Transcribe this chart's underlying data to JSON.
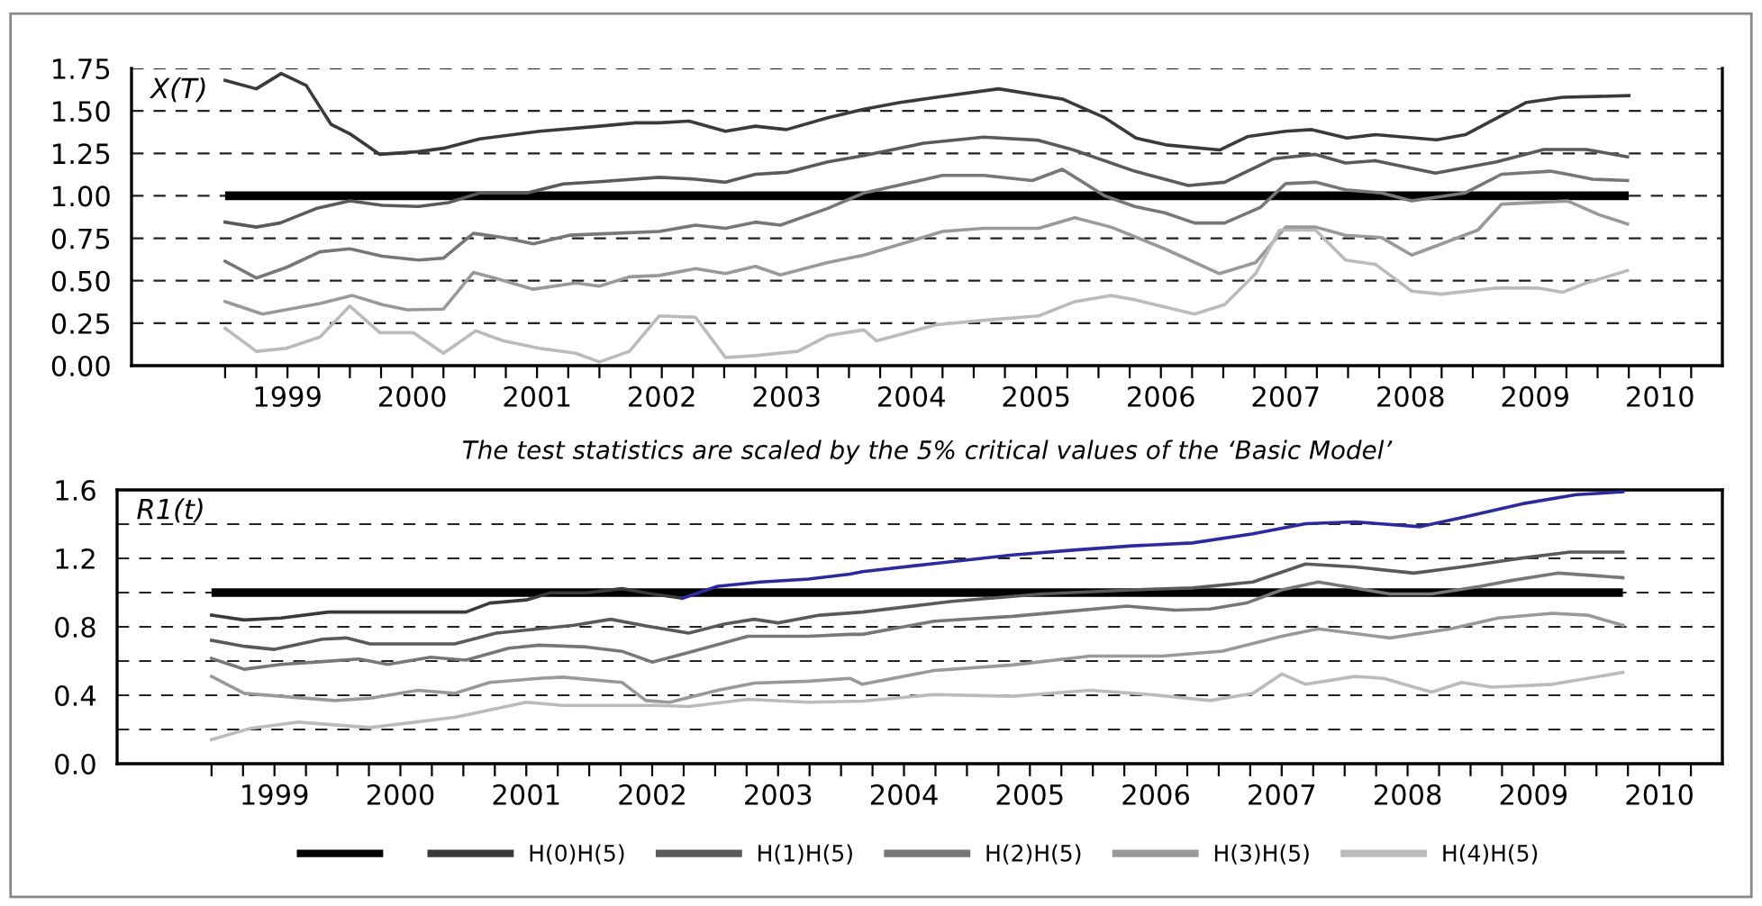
{
  "chart_data": [
    {
      "type": "line",
      "xlim": [
        1998.25,
        2011.0
      ],
      "ylim": [
        0,
        1.75
      ],
      "yticks": [
        {
          "value": 0,
          "label": "0.00"
        },
        {
          "value": 0.25,
          "label": "0.25"
        },
        {
          "value": 0.5,
          "label": "0.50"
        },
        {
          "value": 0.75,
          "label": "0.75"
        },
        {
          "value": 1,
          "label": "1.00"
        },
        {
          "value": 1.25,
          "label": "1.25"
        },
        {
          "value": 1.5,
          "label": "1.50"
        },
        {
          "value": 1.75,
          "label": "1.75"
        }
      ],
      "xticks": [
        {
          "value": 1999,
          "label": null
        },
        {
          "value": 1999.25,
          "label": null
        },
        {
          "value": 1999.5,
          "label": "1999"
        },
        {
          "value": 1999.75,
          "label": null
        },
        {
          "value": 2000,
          "label": null
        },
        {
          "value": 2000.25,
          "label": null
        },
        {
          "value": 2000.5,
          "label": "2000"
        },
        {
          "value": 2000.75,
          "label": null
        },
        {
          "value": 2001,
          "label": null
        },
        {
          "value": 2001.25,
          "label": null
        },
        {
          "value": 2001.5,
          "label": "2001"
        },
        {
          "value": 2001.75,
          "label": null
        },
        {
          "value": 2002,
          "label": null
        },
        {
          "value": 2002.25,
          "label": null
        },
        {
          "value": 2002.5,
          "label": "2002"
        },
        {
          "value": 2002.75,
          "label": null
        },
        {
          "value": 2003,
          "label": null
        },
        {
          "value": 2003.25,
          "label": null
        },
        {
          "value": 2003.5,
          "label": "2003"
        },
        {
          "value": 2003.75,
          "label": null
        },
        {
          "value": 2004,
          "label": null
        },
        {
          "value": 2004.25,
          "label": null
        },
        {
          "value": 2004.5,
          "label": "2004"
        },
        {
          "value": 2004.75,
          "label": null
        },
        {
          "value": 2005,
          "label": null
        },
        {
          "value": 2005.25,
          "label": null
        },
        {
          "value": 2005.5,
          "label": "2005"
        },
        {
          "value": 2005.75,
          "label": null
        },
        {
          "value": 2006,
          "label": null
        },
        {
          "value": 2006.25,
          "label": null
        },
        {
          "value": 2006.5,
          "label": "2006"
        },
        {
          "value": 2006.75,
          "label": null
        },
        {
          "value": 2007,
          "label": null
        },
        {
          "value": 2007.25,
          "label": null
        },
        {
          "value": 2007.5,
          "label": "2007"
        },
        {
          "value": 2007.75,
          "label": null
        },
        {
          "value": 2008,
          "label": null
        },
        {
          "value": 2008.25,
          "label": null
        },
        {
          "value": 2008.5,
          "label": "2008"
        },
        {
          "value": 2008.75,
          "label": null
        },
        {
          "value": 2009,
          "label": null
        },
        {
          "value": 2009.25,
          "label": null
        },
        {
          "value": 2009.5,
          "label": "2009"
        },
        {
          "value": 2009.75,
          "label": null
        },
        {
          "value": 2010,
          "label": null
        },
        {
          "value": 2010.25,
          "label": null
        },
        {
          "value": 2010.5,
          "label": "2010"
        },
        {
          "value": 2010.75,
          "label": null
        }
      ],
      "grid": "y",
      "annotations": [
        "X(T)",
        "The test statistics are scaled by the 5% critical values of the ‘Basic Model’"
      ],
      "ref_lines": [
        {
          "axis": "y",
          "value": 1,
          "color": "#000000"
        }
      ],
      "series": [
        {
          "color": "#3a3a3a",
          "x": [
            1999.0,
            1999.25,
            1999.45,
            1999.65,
            1999.85,
            2000.0,
            2000.24,
            2000.55,
            2000.75,
            2001.04,
            2001.52,
            2002.0,
            2002.29,
            2002.48,
            2002.72,
            2003.01,
            2003.25,
            2003.5,
            2003.83,
            2004.12,
            2004.41,
            2004.7,
            2005.2,
            2005.71,
            2006.05,
            2006.3,
            2006.54,
            2006.97,
            2007.2,
            2007.5,
            2007.71,
            2007.99,
            2008.22,
            2008.71,
            2008.94,
            2009.43,
            2009.72,
            2010.25
          ],
          "values": [
            1.68,
            1.63,
            1.72,
            1.65,
            1.42,
            1.365,
            1.244,
            1.26,
            1.28,
            1.335,
            1.38,
            1.41,
            1.43,
            1.43,
            1.44,
            1.38,
            1.41,
            1.39,
            1.46,
            1.51,
            1.55,
            1.58,
            1.63,
            1.57,
            1.46,
            1.34,
            1.3,
            1.27,
            1.35,
            1.38,
            1.39,
            1.34,
            1.36,
            1.33,
            1.36,
            1.55,
            1.58,
            1.59
          ]
        },
        {
          "color": "#5a5a5a",
          "x": [
            1999.0,
            1999.25,
            1999.44,
            1999.73,
            2000.0,
            2000.26,
            2000.55,
            2000.79,
            2001.04,
            2001.42,
            2001.71,
            2002.0,
            2002.48,
            2002.77,
            2003.01,
            2003.25,
            2003.5,
            2003.83,
            2004.12,
            2004.6,
            2005.08,
            2005.51,
            2005.8,
            2006.29,
            2006.72,
            2007.01,
            2007.4,
            2007.74,
            2007.98,
            2008.22,
            2008.7,
            2009.19,
            2009.57,
            2009.91,
            2010.24
          ],
          "values": [
            0.845,
            0.816,
            0.84,
            0.925,
            0.97,
            0.944,
            0.937,
            0.96,
            1.017,
            1.017,
            1.07,
            1.083,
            1.109,
            1.098,
            1.08,
            1.127,
            1.138,
            1.2,
            1.237,
            1.31,
            1.346,
            1.328,
            1.27,
            1.145,
            1.061,
            1.08,
            1.218,
            1.244,
            1.193,
            1.207,
            1.134,
            1.2,
            1.273,
            1.273,
            1.229
          ]
        },
        {
          "color": "#777777",
          "x": [
            1999.0,
            1999.25,
            1999.49,
            1999.76,
            2000.0,
            2000.26,
            2000.55,
            2000.75,
            2000.99,
            2001.23,
            2001.47,
            2001.76,
            2002.24,
            2002.48,
            2002.77,
            2003.01,
            2003.25,
            2003.45,
            2003.83,
            2004.12,
            2004.75,
            2005.08,
            2005.47,
            2005.71,
            2006.05,
            2006.29,
            2006.53,
            2006.77,
            2007.01,
            2007.3,
            2007.5,
            2007.74,
            2007.98,
            2008.27,
            2008.51,
            2008.94,
            2009.23,
            2009.62,
            2009.76,
            2009.96,
            2010.24
          ],
          "values": [
            0.615,
            0.516,
            0.578,
            0.67,
            0.688,
            0.644,
            0.622,
            0.633,
            0.779,
            0.754,
            0.717,
            0.768,
            0.783,
            0.79,
            0.827,
            0.809,
            0.845,
            0.827,
            0.926,
            1.017,
            1.12,
            1.12,
            1.09,
            1.156,
            1.0,
            0.937,
            0.9,
            0.84,
            0.84,
            0.933,
            1.072,
            1.08,
            1.035,
            1.017,
            0.97,
            1.017,
            1.127,
            1.145,
            1.127,
            1.098,
            1.09
          ]
        },
        {
          "color": "#999999",
          "x": [
            1999.0,
            1999.3,
            1999.76,
            2000.02,
            2000.26,
            2000.46,
            2000.75,
            2000.99,
            2001.18,
            2001.47,
            2001.81,
            2002.0,
            2002.24,
            2002.48,
            2002.77,
            2003.01,
            2003.25,
            2003.45,
            2003.83,
            2004.12,
            2004.75,
            2005.08,
            2005.52,
            2005.81,
            2006.1,
            2006.53,
            2006.97,
            2007.26,
            2007.5,
            2007.74,
            2007.98,
            2008.27,
            2008.51,
            2008.75,
            2009.04,
            2009.23,
            2009.76,
            2010.01,
            2010.24
          ],
          "values": [
            0.377,
            0.304,
            0.366,
            0.413,
            0.359,
            0.329,
            0.333,
            0.549,
            0.512,
            0.45,
            0.487,
            0.468,
            0.523,
            0.531,
            0.571,
            0.542,
            0.585,
            0.534,
            0.607,
            0.651,
            0.79,
            0.809,
            0.809,
            0.871,
            0.816,
            0.688,
            0.542,
            0.607,
            0.816,
            0.816,
            0.768,
            0.754,
            0.651,
            0.717,
            0.798,
            0.951,
            0.97,
            0.889,
            0.834
          ]
        },
        {
          "color": "#bbbbbb",
          "x": [
            1999.0,
            1999.25,
            1999.49,
            1999.76,
            2000.0,
            2000.24,
            2000.51,
            2000.75,
            2001.01,
            2001.23,
            2001.52,
            2001.81,
            2002.0,
            2002.24,
            2002.48,
            2002.77,
            2003.01,
            2003.25,
            2003.59,
            2003.83,
            2004.03,
            2004.12,
            2004.22,
            2004.7,
            2005.08,
            2005.52,
            2005.81,
            2006.1,
            2006.29,
            2006.77,
            2007.01,
            2007.26,
            2007.45,
            2007.74,
            2007.98,
            2008.22,
            2008.51,
            2008.75,
            2009.19,
            2009.52,
            2009.72,
            2009.91,
            2010.24
          ],
          "values": [
            0.22,
            0.084,
            0.102,
            0.168,
            0.351,
            0.194,
            0.194,
            0.073,
            0.205,
            0.146,
            0.102,
            0.073,
            0.022,
            0.084,
            0.293,
            0.285,
            0.048,
            0.059,
            0.084,
            0.176,
            0.201,
            0.21,
            0.146,
            0.241,
            0.267,
            0.293,
            0.377,
            0.413,
            0.388,
            0.304,
            0.359,
            0.542,
            0.798,
            0.798,
            0.622,
            0.596,
            0.439,
            0.421,
            0.457,
            0.457,
            0.432,
            0.487,
            0.56
          ]
        }
      ]
    },
    {
      "type": "line",
      "xlim": [
        1998.25,
        2011.0
      ],
      "ylim": [
        0,
        1.6
      ],
      "yticks": [
        {
          "value": 0,
          "label": "0.0"
        },
        {
          "value": 0.2,
          "label": null
        },
        {
          "value": 0.4,
          "label": "0.4"
        },
        {
          "value": 0.6,
          "label": null
        },
        {
          "value": 0.8,
          "label": "0.8"
        },
        {
          "value": 1.0,
          "label": null
        },
        {
          "value": 1.2,
          "label": "1.2"
        },
        {
          "value": 1.4,
          "label": null
        },
        {
          "value": 1.6,
          "label": "1.6"
        }
      ],
      "xticks": [
        {
          "value": 1999,
          "label": null
        },
        {
          "value": 1999.25,
          "label": null
        },
        {
          "value": 1999.5,
          "label": "1999"
        },
        {
          "value": 1999.75,
          "label": null
        },
        {
          "value": 2000,
          "label": null
        },
        {
          "value": 2000.25,
          "label": null
        },
        {
          "value": 2000.5,
          "label": "2000"
        },
        {
          "value": 2000.75,
          "label": null
        },
        {
          "value": 2001,
          "label": null
        },
        {
          "value": 2001.25,
          "label": null
        },
        {
          "value": 2001.5,
          "label": "2001"
        },
        {
          "value": 2001.75,
          "label": null
        },
        {
          "value": 2002,
          "label": null
        },
        {
          "value": 2002.25,
          "label": null
        },
        {
          "value": 2002.5,
          "label": "2002"
        },
        {
          "value": 2002.75,
          "label": null
        },
        {
          "value": 2003,
          "label": null
        },
        {
          "value": 2003.25,
          "label": null
        },
        {
          "value": 2003.5,
          "label": "2003"
        },
        {
          "value": 2003.75,
          "label": null
        },
        {
          "value": 2004,
          "label": null
        },
        {
          "value": 2004.25,
          "label": null
        },
        {
          "value": 2004.5,
          "label": "2004"
        },
        {
          "value": 2004.75,
          "label": null
        },
        {
          "value": 2005,
          "label": null
        },
        {
          "value": 2005.25,
          "label": null
        },
        {
          "value": 2005.5,
          "label": "2005"
        },
        {
          "value": 2005.75,
          "label": null
        },
        {
          "value": 2006,
          "label": null
        },
        {
          "value": 2006.25,
          "label": null
        },
        {
          "value": 2006.5,
          "label": "2006"
        },
        {
          "value": 2006.75,
          "label": null
        },
        {
          "value": 2007,
          "label": null
        },
        {
          "value": 2007.25,
          "label": null
        },
        {
          "value": 2007.5,
          "label": "2007"
        },
        {
          "value": 2007.75,
          "label": null
        },
        {
          "value": 2008,
          "label": null
        },
        {
          "value": 2008.25,
          "label": null
        },
        {
          "value": 2008.5,
          "label": "2008"
        },
        {
          "value": 2008.75,
          "label": null
        },
        {
          "value": 2009,
          "label": null
        },
        {
          "value": 2009.25,
          "label": null
        },
        {
          "value": 2009.5,
          "label": "2009"
        },
        {
          "value": 2009.75,
          "label": null
        },
        {
          "value": 2010,
          "label": null
        },
        {
          "value": 2010.25,
          "label": null
        },
        {
          "value": 2010.5,
          "label": "2010"
        },
        {
          "value": 2010.75,
          "label": null
        }
      ],
      "grid": "y",
      "legend": "bottom",
      "annotations": [
        "R1(t)"
      ],
      "ref_lines": [
        {
          "axis": "y",
          "value": 1,
          "color": "#000000"
        }
      ],
      "series": [
        {
          "name": "H(0)H(5)",
          "color": "#3a3a3a",
          "x": [
            1999.0,
            1999.26,
            1999.55,
            1999.93,
            2000.26,
            2000.64,
            2001.02,
            2001.21,
            2001.5,
            2001.69,
            2001.98,
            2002.26,
            2002.5,
            2002.74
          ],
          "values": [
            0.868,
            0.84,
            0.851,
            0.886,
            0.886,
            0.886,
            0.886,
            0.939,
            0.957,
            0.999,
            0.999,
            1.023,
            0.992,
            0.967
          ]
        },
        {
          "color": "#2b2b9e",
          "x": [
            2002.74,
            2003.02,
            2003.36,
            2003.74,
            2004.07,
            2004.17,
            2004.79,
            2005.36,
            2005.84,
            2006.31,
            2006.79,
            2007.27,
            2007.69,
            2008.08,
            2008.6,
            2008.93,
            2009.41,
            2009.84,
            2010.21
          ],
          "values": [
            0.967,
            1.037,
            1.062,
            1.079,
            1.108,
            1.122,
            1.174,
            1.22,
            1.248,
            1.273,
            1.29,
            1.343,
            1.403,
            1.413,
            1.385,
            1.438,
            1.519,
            1.572,
            1.589
          ]
        },
        {
          "name": "H(1)H(5)",
          "color": "#5a5a5a",
          "x": [
            1999.0,
            1999.26,
            1999.5,
            1999.88,
            2000.07,
            2000.26,
            2000.64,
            2000.93,
            2001.26,
            2001.6,
            2001.88,
            2002.17,
            2002.45,
            2002.79,
            2003.07,
            2003.31,
            2003.5,
            2003.83,
            2004.17,
            2004.88,
            2005.6,
            2006.31,
            2006.79,
            2007.27,
            2007.69,
            2008.08,
            2008.55,
            2008.93,
            2009.41,
            2009.79,
            2010.21
          ],
          "values": [
            0.721,
            0.686,
            0.668,
            0.728,
            0.735,
            0.7,
            0.7,
            0.7,
            0.763,
            0.788,
            0.809,
            0.844,
            0.805,
            0.763,
            0.816,
            0.844,
            0.823,
            0.868,
            0.886,
            0.949,
            0.992,
            1.016,
            1.027,
            1.062,
            1.167,
            1.15,
            1.114,
            1.15,
            1.202,
            1.237,
            1.237
          ]
        },
        {
          "name": "H(2)H(5)",
          "color": "#777777",
          "x": [
            1999.0,
            1999.26,
            1999.55,
            1999.83,
            2000.17,
            2000.4,
            2000.74,
            2001.02,
            2001.36,
            2001.6,
            2001.98,
            2002.26,
            2002.5,
            2002.79,
            2003.26,
            2003.74,
            2004.07,
            2004.17,
            2004.74,
            2005.36,
            2005.84,
            2006.27,
            2006.65,
            2006.93,
            2007.22,
            2007.5,
            2007.79,
            2008.36,
            2008.69,
            2009.08,
            2009.31,
            2009.7,
            2010.21
          ],
          "values": [
            0.615,
            0.552,
            0.58,
            0.594,
            0.612,
            0.58,
            0.622,
            0.605,
            0.675,
            0.693,
            0.682,
            0.657,
            0.594,
            0.65,
            0.745,
            0.745,
            0.756,
            0.756,
            0.833,
            0.861,
            0.893,
            0.921,
            0.897,
            0.904,
            0.939,
            1.016,
            1.062,
            0.992,
            0.992,
            1.037,
            1.069,
            1.114,
            1.087
          ]
        },
        {
          "name": "H(3)H(5)",
          "color": "#999999",
          "x": [
            1999.0,
            1999.26,
            1999.55,
            1999.98,
            2000.26,
            2000.64,
            2000.93,
            2001.21,
            2001.6,
            2001.79,
            2002.26,
            2002.45,
            2002.64,
            2003.02,
            2003.31,
            2003.74,
            2004.07,
            2004.17,
            2004.74,
            2005.36,
            2005.98,
            2006.55,
            2007.03,
            2007.5,
            2007.79,
            2008.36,
            2008.84,
            2009.22,
            2009.65,
            2009.93,
            2010.21
          ],
          "values": [
            0.51,
            0.411,
            0.394,
            0.369,
            0.383,
            0.429,
            0.411,
            0.475,
            0.499,
            0.506,
            0.475,
            0.369,
            0.359,
            0.429,
            0.471,
            0.482,
            0.499,
            0.464,
            0.545,
            0.577,
            0.629,
            0.629,
            0.658,
            0.745,
            0.788,
            0.735,
            0.788,
            0.851,
            0.879,
            0.868,
            0.809
          ]
        },
        {
          "name": "H(4)H(5)",
          "color": "#bbbbbb",
          "x": [
            1999.0,
            1999.31,
            1999.69,
            2000.26,
            2000.93,
            2001.5,
            2001.79,
            2002.55,
            2002.79,
            2003.26,
            2003.74,
            2004.17,
            2004.74,
            2005.36,
            2005.98,
            2006.46,
            2006.93,
            2007.27,
            2007.5,
            2007.69,
            2008.08,
            2008.31,
            2008.69,
            2008.93,
            2009.17,
            2009.65,
            2010.21
          ],
          "values": [
            0.141,
            0.207,
            0.243,
            0.211,
            0.271,
            0.359,
            0.341,
            0.341,
            0.334,
            0.376,
            0.359,
            0.366,
            0.404,
            0.394,
            0.429,
            0.404,
            0.369,
            0.411,
            0.524,
            0.464,
            0.51,
            0.499,
            0.418,
            0.475,
            0.447,
            0.464,
            0.534
          ]
        }
      ]
    }
  ]
}
